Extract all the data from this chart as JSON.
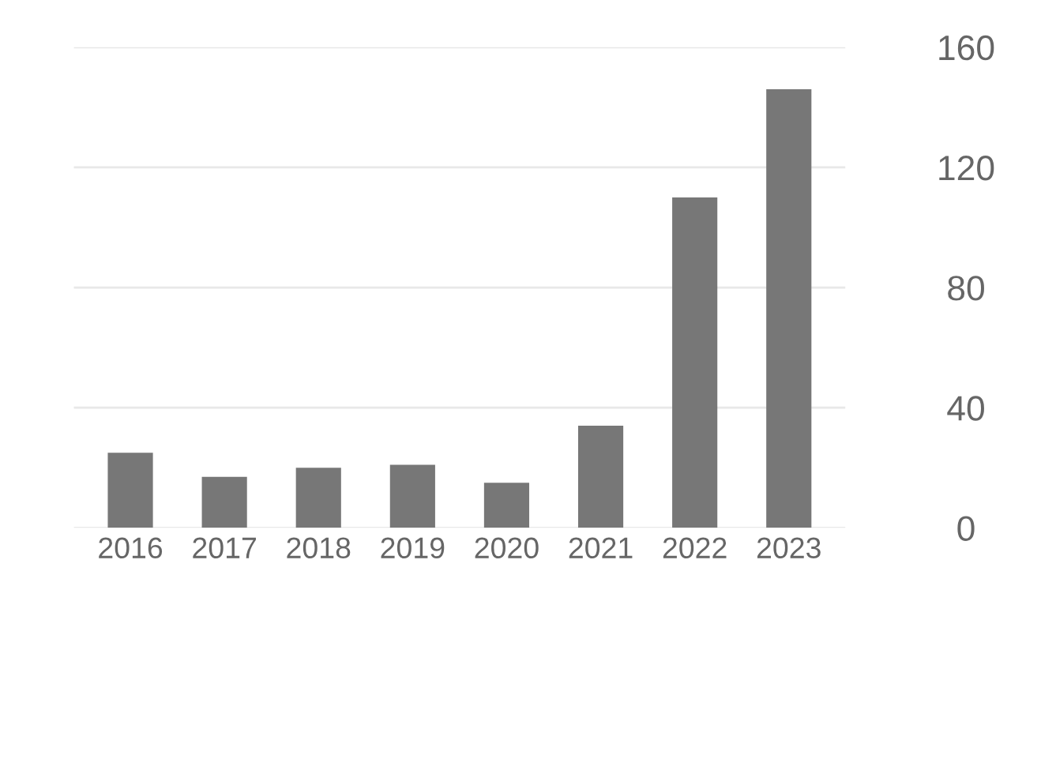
{
  "chart_data": {
    "type": "bar",
    "categories": [
      "2016",
      "2017",
      "2018",
      "2019",
      "2020",
      "2021",
      "2022",
      "2023"
    ],
    "values": [
      25,
      17,
      20,
      21,
      15,
      34,
      110,
      146
    ],
    "color": "#777777",
    "ylim": [
      0,
      160
    ],
    "yticks": [
      0,
      40,
      80,
      120,
      160
    ],
    "grid": "y"
  }
}
